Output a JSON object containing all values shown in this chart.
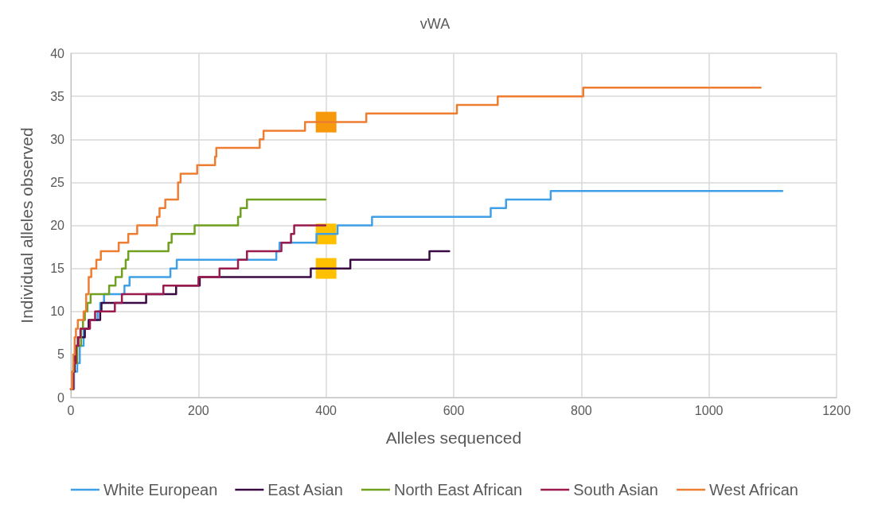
{
  "chart_data": {
    "type": "step",
    "title": "vWA",
    "xlabel": "Alleles sequenced",
    "ylabel": "Individual alleles observed",
    "xlim": [
      0,
      1200
    ],
    "xticks": [
      0,
      200,
      400,
      600,
      800,
      1000,
      1200
    ],
    "ylim": [
      0,
      40
    ],
    "yticks": [
      0,
      5,
      10,
      15,
      20,
      25,
      30,
      35,
      40
    ],
    "grid": true,
    "legend": "bottom",
    "marker": "none",
    "line_style": "solid",
    "series": [
      {
        "name": "White European",
        "color": "#3fa0e8",
        "x": [
          0,
          5,
          10,
          14,
          20,
          28,
          42,
          46,
          52,
          84,
          92,
          156,
          166,
          322,
          327,
          385,
          418,
          472,
          658,
          682,
          752,
          1115
        ],
        "values": [
          1,
          3,
          4,
          6,
          8,
          9,
          10,
          11,
          12,
          13,
          14,
          15,
          16,
          17,
          18,
          19,
          20,
          21,
          22,
          23,
          24,
          24
        ]
      },
      {
        "name": "East Asian",
        "color": "#3b0a45",
        "x": [
          0,
          3,
          6,
          9,
          11,
          22,
          28,
          46,
          48,
          118,
          165,
          202,
          376,
          438,
          562,
          593
        ],
        "values": [
          1,
          3,
          5,
          6,
          7,
          8,
          9,
          10,
          11,
          12,
          13,
          14,
          15,
          16,
          17,
          17
        ]
      },
      {
        "name": "North East African",
        "color": "#70a020",
        "x": [
          0,
          4,
          10,
          16,
          19,
          22,
          26,
          31,
          60,
          70,
          80,
          86,
          90,
          153,
          158,
          194,
          262,
          266,
          276,
          399
        ],
        "values": [
          1,
          4,
          6,
          8,
          9,
          10,
          11,
          12,
          13,
          14,
          15,
          16,
          17,
          18,
          19,
          20,
          21,
          22,
          23,
          23
        ]
      },
      {
        "name": "South Asian",
        "color": "#9b1b4f",
        "x": [
          0,
          4,
          8,
          12,
          15,
          30,
          38,
          69,
          80,
          145,
          200,
          233,
          262,
          276,
          330,
          345,
          350,
          399
        ],
        "values": [
          1,
          4,
          6,
          7,
          8,
          9,
          10,
          11,
          12,
          13,
          14,
          15,
          16,
          17,
          18,
          19,
          20,
          20
        ]
      },
      {
        "name": "West African",
        "color": "#ed7d31",
        "x": [
          0,
          2,
          4,
          6,
          8,
          11,
          20,
          24,
          28,
          32,
          40,
          47,
          75,
          90,
          104,
          135,
          139,
          148,
          168,
          172,
          198,
          226,
          228,
          296,
          302,
          367,
          463,
          605,
          669,
          803,
          1081
        ],
        "values": [
          1,
          3,
          5,
          7,
          8,
          9,
          10,
          12,
          14,
          15,
          16,
          17,
          18,
          19,
          20,
          21,
          22,
          23,
          25,
          26,
          27,
          28,
          29,
          30,
          31,
          32,
          33,
          34,
          35,
          36,
          36
        ]
      },
      {
        "type": "scatter",
        "marker": "square",
        "color": "#f7990c",
        "x": [
          400
        ],
        "values": [
          32
        ]
      },
      {
        "type": "scatter",
        "marker": "square",
        "color": "#ffc000",
        "x": [
          400
        ],
        "values": [
          19
        ]
      },
      {
        "type": "scatter",
        "marker": "square",
        "color": "#ffc000",
        "x": [
          400
        ],
        "values": [
          15
        ]
      }
    ]
  }
}
